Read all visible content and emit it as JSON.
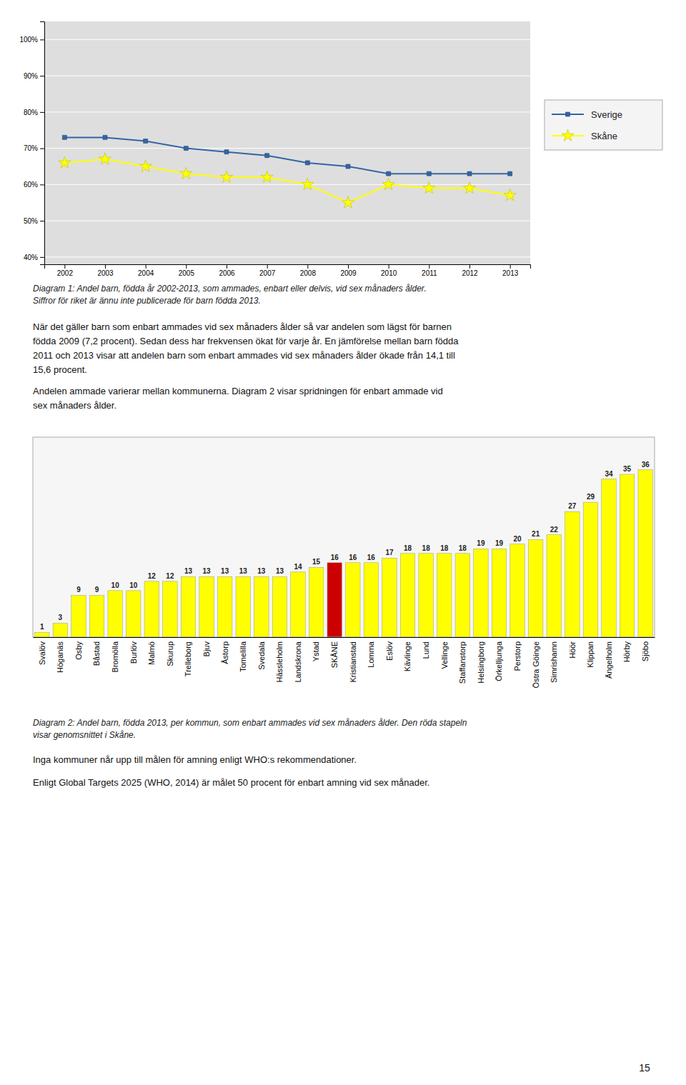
{
  "chart_data": [
    {
      "type": "line",
      "x": [
        2002,
        2003,
        2004,
        2005,
        2006,
        2007,
        2008,
        2009,
        2010,
        2011,
        2012,
        2013
      ],
      "series": [
        {
          "name": "Sverige",
          "color": "#3465a4",
          "marker": "square",
          "values": [
            73,
            73,
            72,
            70,
            69,
            68,
            66,
            65,
            63,
            63,
            63,
            63
          ]
        },
        {
          "name": "Skåne",
          "color": "#ffff00",
          "marker": "star",
          "values": [
            66,
            67,
            65,
            63,
            62,
            62,
            60,
            55,
            60,
            59,
            59,
            57
          ]
        }
      ],
      "xlim": [
        2001.5,
        2013.5
      ],
      "xticks": [
        2002,
        2003,
        2004,
        2005,
        2006,
        2007,
        2008,
        2009,
        2010,
        2011,
        2012,
        2013
      ],
      "ylim": [
        38,
        105
      ],
      "yticks": [
        {
          "value": 40,
          "label": "40%"
        },
        {
          "value": 50,
          "label": "50%"
        },
        {
          "value": 60,
          "label": "60%"
        },
        {
          "value": 70,
          "label": "70%"
        },
        {
          "value": 80,
          "label": "80%"
        },
        {
          "value": 90,
          "label": "90%"
        },
        {
          "value": 100,
          "label": "100%"
        }
      ],
      "grid": true,
      "legend": "right",
      "annotations": [
        "Diagram 1: Andel barn, födda år 2002-2013, som ammades, enbart eller delvis, vid sex månaders ålder.",
        "Siffror för riket är ännu inte publicerade för barn födda 2013."
      ]
    },
    {
      "type": "bar",
      "categories": [
        "Svalöv",
        "Höganäs",
        "Osby",
        "Båstad",
        "Bromölla",
        "Burlöv",
        "Malmö",
        "Skurup",
        "Trelleborg",
        "Bjuv",
        "Åstorp",
        "Tomelilla",
        "Svedala",
        "Hässleholm",
        "Landskrona",
        "Ystad",
        "SKÅNE",
        "Kristianstad",
        "Lomma",
        "Eslöv",
        "Kävlinge",
        "Lund",
        "Vellinge",
        "Staffanstorp",
        "Helsingborg",
        "Örkelljunga",
        "Perstorp",
        "Östra Göinge",
        "Simrishamn",
        "Höör",
        "Klippan",
        "Ängelholm",
        "Hörby",
        "Sjöbo"
      ],
      "values": [
        1,
        3,
        9,
        9,
        10,
        10,
        12,
        12,
        13,
        13,
        13,
        13,
        13,
        13,
        14,
        15,
        16,
        16,
        16,
        17,
        18,
        18,
        18,
        18,
        19,
        19,
        20,
        21,
        22,
        27,
        29,
        34,
        35,
        36
      ],
      "colors": [
        "#ffff00",
        "#ffff00",
        "#ffff00",
        "#ffff00",
        "#ffff00",
        "#ffff00",
        "#ffff00",
        "#ffff00",
        "#ffff00",
        "#ffff00",
        "#ffff00",
        "#ffff00",
        "#ffff00",
        "#ffff00",
        "#ffff00",
        "#ffff00",
        "#cc0000",
        "#ffff00",
        "#ffff00",
        "#ffff00",
        "#ffff00",
        "#ffff00",
        "#ffff00",
        "#ffff00",
        "#ffff00",
        "#ffff00",
        "#ffff00",
        "#ffff00",
        "#ffff00",
        "#ffff00",
        "#ffff00",
        "#ffff00",
        "#ffff00",
        "#ffff00"
      ],
      "ylim": [
        0,
        43
      ],
      "grid": false,
      "tick_labels": "x",
      "data_labels": true,
      "annotations": [
        "Diagram 2: Andel barn, födda 2013, per kommun, som enbart ammades vid sex månaders ålder. Den röda stapeln",
        "visar genomsnittet i Skåne."
      ]
    }
  ],
  "paragraphs": [
    [
      "När det gäller barn som enbart ammades vid sex månaders ålder så var andelen som lägst för barnen",
      "födda 2009 (7,2 procent). Sedan dess har frekvensen ökat för varje år. En jämförelse mellan barn födda",
      "2011 och 2013 visar att andelen barn som enbart ammades vid sex månaders ålder ökade från 14,1  till",
      "15,6 procent."
    ],
    [
      "Andelen ammade varierar mellan kommunerna. Diagram 2 visar spridningen för enbart ammade vid",
      "sex månaders ålder."
    ],
    [
      "Inga kommuner når upp till målen för amning enligt WHO:s rekommendationer."
    ],
    [
      "Enligt Global Targets 2025 (WHO, 2014) är målet 50 procent för enbart amning vid sex månader."
    ]
  ],
  "page_number": "15"
}
